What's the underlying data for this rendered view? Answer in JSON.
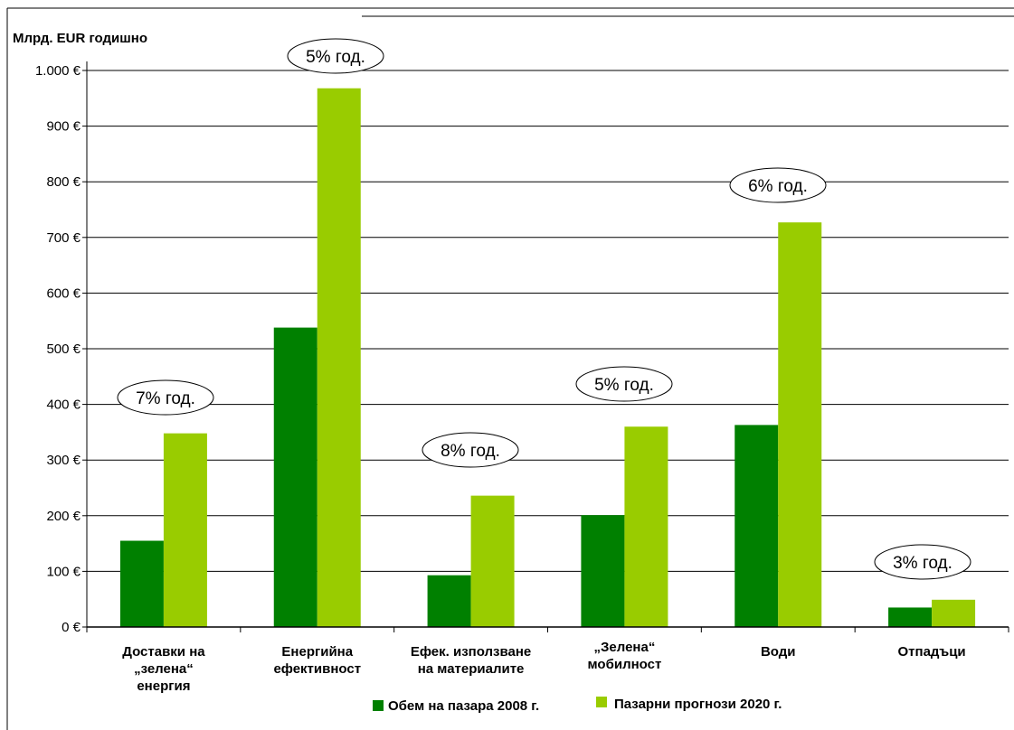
{
  "chart_data": {
    "type": "bar",
    "ylabel": "Млрд. EUR годишно",
    "ylim": [
      0,
      1000
    ],
    "yticks": [
      {
        "value": 0,
        "label": "0 €"
      },
      {
        "value": 100,
        "label": "100 €"
      },
      {
        "value": 200,
        "label": "200 €"
      },
      {
        "value": 300,
        "label": "300 €"
      },
      {
        "value": 400,
        "label": "400 €"
      },
      {
        "value": 500,
        "label": "500 €"
      },
      {
        "value": 600,
        "label": "600 €"
      },
      {
        "value": 700,
        "label": "700 €"
      },
      {
        "value": 800,
        "label": "800 €"
      },
      {
        "value": 900,
        "label": "900 €"
      },
      {
        "value": 1000,
        "label": "1.000 €"
      }
    ],
    "grid": true,
    "legend_position": "bottom",
    "categories": [
      [
        "Доставки на",
        "„зелена“",
        "енергия"
      ],
      [
        "Енергийна",
        "ефективност"
      ],
      [
        "Ефек. използване",
        "на материалите"
      ],
      [
        "„Зелена“",
        "мобилност"
      ],
      [
        "Води"
      ],
      [
        "Отпадъци"
      ]
    ],
    "series": [
      {
        "name": "Обем на пазара 2008 г.",
        "color": "#008000",
        "values": [
          155,
          538,
          93,
          201,
          363,
          35
        ]
      },
      {
        "name": "Пазарни прогнози 2020 г.",
        "color": "#99cc00",
        "values": [
          348,
          968,
          236,
          360,
          727,
          49
        ]
      }
    ],
    "annotations": [
      "7% год.",
      "5%  год.",
      "8% год.",
      "5% год.",
      "6% год.",
      "3% год."
    ]
  }
}
